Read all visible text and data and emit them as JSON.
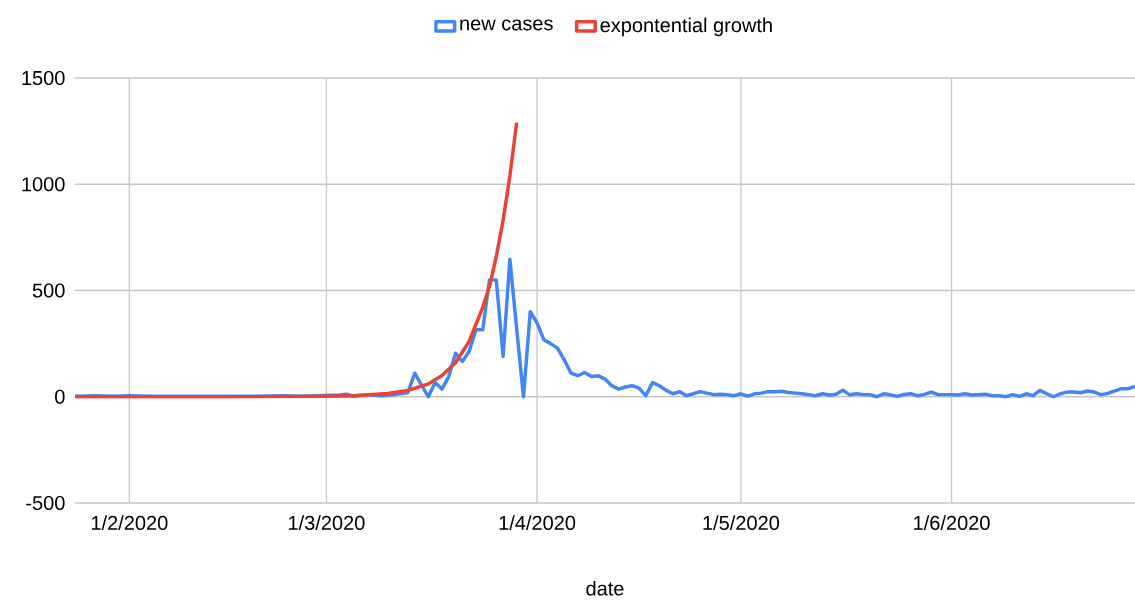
{
  "chart_data": {
    "type": "line",
    "xlabel": "date",
    "legend": "top",
    "grid": true,
    "marker": "none",
    "line_style": "solid",
    "xlim": [
      "2020-01-24",
      "2020-06-28"
    ],
    "ylim": [
      -500,
      1500
    ],
    "yticks": [
      -500,
      0,
      500,
      1000,
      1500
    ],
    "xticks": [
      {
        "value": "2020-02-01",
        "label": "1/2/2020"
      },
      {
        "value": "2020-03-01",
        "label": "1/3/2020"
      },
      {
        "value": "2020-04-01",
        "label": "1/4/2020"
      },
      {
        "value": "2020-05-01",
        "label": "1/5/2020"
      },
      {
        "value": "2020-06-01",
        "label": "1/6/2020"
      }
    ],
    "series": [
      {
        "name": "new cases",
        "color": "#4285f4",
        "x": [
          "2020-01-24",
          "2020-01-27",
          "2020-01-30",
          "2020-02-01",
          "2020-02-04",
          "2020-02-08",
          "2020-02-12",
          "2020-02-16",
          "2020-02-20",
          "2020-02-24",
          "2020-02-26",
          "2020-02-29",
          "2020-03-01",
          "2020-03-03",
          "2020-03-04",
          "2020-03-05",
          "2020-03-07",
          "2020-03-09",
          "2020-03-11",
          "2020-03-13",
          "2020-03-14",
          "2020-03-15",
          "2020-03-16",
          "2020-03-17",
          "2020-03-18",
          "2020-03-19",
          "2020-03-20",
          "2020-03-21",
          "2020-03-22",
          "2020-03-23",
          "2020-03-24",
          "2020-03-25",
          "2020-03-26",
          "2020-03-27",
          "2020-03-28",
          "2020-03-29",
          "2020-03-30",
          "2020-03-31",
          "2020-04-01",
          "2020-04-02",
          "2020-04-03",
          "2020-04-04",
          "2020-04-05",
          "2020-04-06",
          "2020-04-07",
          "2020-04-08",
          "2020-04-09",
          "2020-04-10",
          "2020-04-11",
          "2020-04-12",
          "2020-04-13",
          "2020-04-14",
          "2020-04-15",
          "2020-04-16",
          "2020-04-17",
          "2020-04-18",
          "2020-04-19",
          "2020-04-20",
          "2020-04-21",
          "2020-04-22",
          "2020-04-23",
          "2020-04-24",
          "2020-04-25",
          "2020-04-26",
          "2020-04-27",
          "2020-04-28",
          "2020-04-29",
          "2020-04-30",
          "2020-05-01",
          "2020-05-02",
          "2020-05-03",
          "2020-05-04",
          "2020-05-05",
          "2020-05-06",
          "2020-05-07",
          "2020-05-08",
          "2020-05-09",
          "2020-05-10",
          "2020-05-11",
          "2020-05-12",
          "2020-05-13",
          "2020-05-14",
          "2020-05-15",
          "2020-05-16",
          "2020-05-17",
          "2020-05-18",
          "2020-05-19",
          "2020-05-20",
          "2020-05-21",
          "2020-05-22",
          "2020-05-23",
          "2020-05-24",
          "2020-05-25",
          "2020-05-26",
          "2020-05-27",
          "2020-05-28",
          "2020-05-29",
          "2020-05-30",
          "2020-05-31",
          "2020-06-01",
          "2020-06-02",
          "2020-06-03",
          "2020-06-04",
          "2020-06-05",
          "2020-06-06",
          "2020-06-07",
          "2020-06-08",
          "2020-06-09",
          "2020-06-10",
          "2020-06-11",
          "2020-06-12",
          "2020-06-13",
          "2020-06-14",
          "2020-06-15",
          "2020-06-16",
          "2020-06-17",
          "2020-06-18",
          "2020-06-19",
          "2020-06-20",
          "2020-06-21",
          "2020-06-22",
          "2020-06-23",
          "2020-06-24",
          "2020-06-25",
          "2020-06-26",
          "2020-06-27",
          "2020-06-28"
        ],
        "values": [
          2,
          5,
          2,
          5,
          2,
          3,
          null,
          null,
          2,
          5,
          2,
          null,
          null,
          8,
          12,
          2,
          10,
          5,
          10,
          20,
          111,
          55,
          0,
          67,
          36,
          95,
          205,
          166,
          213,
          315,
          315,
          550,
          550,
          190,
          647,
          320,
          0,
          400,
          348,
          268,
          250,
          229,
          174,
          111,
          99,
          114,
          95,
          99,
          83,
          52,
          36,
          46,
          52,
          41,
          5,
          67,
          52,
          30,
          14,
          24,
          5,
          14,
          24,
          17,
          10,
          12,
          10,
          5,
          14,
          3,
          14,
          17,
          24,
          24,
          26,
          20,
          17,
          14,
          10,
          5,
          14,
          8,
          12,
          31,
          9,
          14,
          10,
          10,
          0,
          14,
          9,
          2,
          11,
          14,
          5,
          11,
          22,
          10,
          10,
          10,
          8,
          14,
          8,
          10,
          12,
          5,
          5,
          0,
          10,
          2,
          14,
          5,
          30,
          14,
          0,
          14,
          22,
          22,
          19,
          27,
          22,
          10,
          16,
          27,
          38,
          38,
          49
        ]
      },
      {
        "name": "expontential growth",
        "color": "#ea4335",
        "x": [
          "2020-01-24",
          "2020-02-15",
          "2020-03-01",
          "2020-03-05",
          "2020-03-10",
          "2020-03-13",
          "2020-03-16",
          "2020-03-18",
          "2020-03-20",
          "2020-03-22",
          "2020-03-24",
          "2020-03-25",
          "2020-03-26",
          "2020-03-27",
          "2020-03-28",
          "2020-03-29"
        ],
        "values": [
          0,
          0,
          2,
          5,
          15,
          30,
          60,
          100,
          160,
          260,
          420,
          520,
          660,
          830,
          1040,
          1290
        ]
      }
    ]
  }
}
